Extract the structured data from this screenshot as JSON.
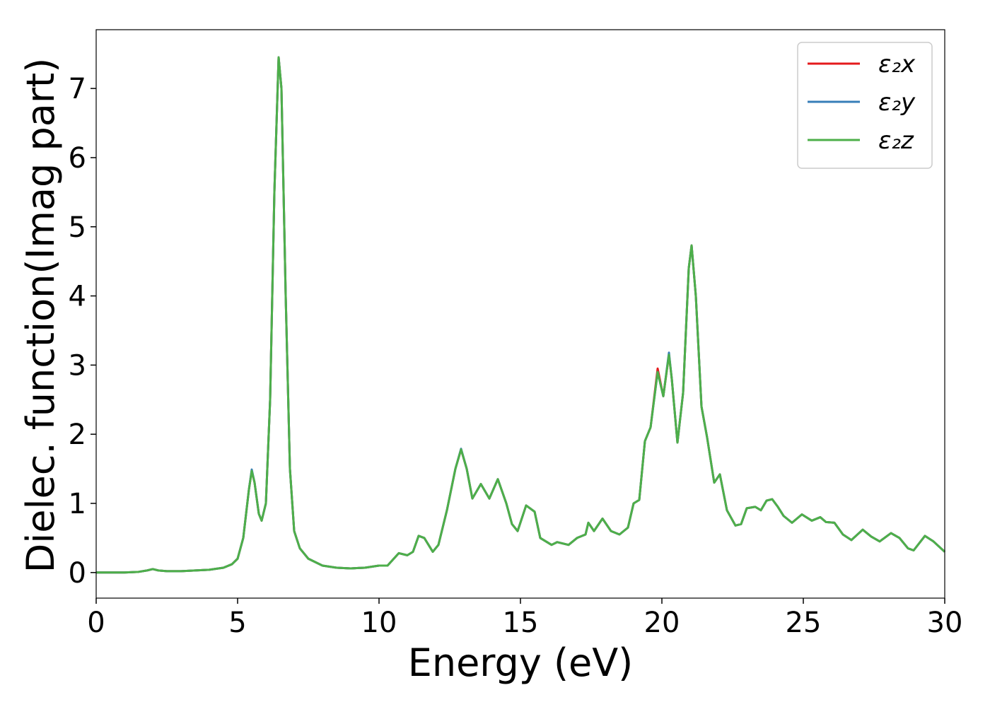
{
  "chart_data": {
    "type": "line",
    "xlabel": "Energy (eV)",
    "ylabel": "Dielec. function(Imag part)",
    "xlim": [
      0,
      30
    ],
    "ylim": [
      -0.37,
      7.85
    ],
    "xticks": [
      0,
      5,
      10,
      15,
      20,
      25,
      30
    ],
    "yticks": [
      0,
      1,
      2,
      3,
      4,
      5,
      6,
      7
    ],
    "grid": false,
    "legend": "upper right",
    "x": [
      0,
      1,
      1.5,
      1.8,
      2.0,
      2.2,
      2.5,
      3,
      3.5,
      4,
      4.5,
      4.8,
      5.0,
      5.2,
      5.4,
      5.5,
      5.6,
      5.75,
      5.85,
      6.0,
      6.15,
      6.3,
      6.45,
      6.55,
      6.7,
      6.85,
      7.0,
      7.2,
      7.5,
      8,
      8.5,
      9,
      9.5,
      10,
      10.3,
      10.7,
      11,
      11.2,
      11.4,
      11.6,
      11.9,
      12.1,
      12.4,
      12.7,
      12.9,
      13.1,
      13.3,
      13.6,
      13.9,
      14.2,
      14.5,
      14.7,
      14.9,
      15.2,
      15.5,
      15.7,
      15.9,
      16.1,
      16.3,
      16.7,
      17,
      17.3,
      17.4,
      17.6,
      17.9,
      18.2,
      18.5,
      18.8,
      19.0,
      19.2,
      19.4,
      19.6,
      19.85,
      20.05,
      20.25,
      20.35,
      20.55,
      20.75,
      20.95,
      21.05,
      21.2,
      21.4,
      21.6,
      21.85,
      22.05,
      22.3,
      22.6,
      22.8,
      23.0,
      23.3,
      23.5,
      23.7,
      23.9,
      24.1,
      24.3,
      24.6,
      24.95,
      25.3,
      25.6,
      25.8,
      26.1,
      26.4,
      26.7,
      27.1,
      27.4,
      27.7,
      28.1,
      28.4,
      28.7,
      28.9,
      29.3,
      29.6,
      30
    ],
    "series": [
      {
        "name": "ε₂x",
        "color": "#e41a1c",
        "values": [
          0,
          0,
          0.01,
          0.03,
          0.05,
          0.03,
          0.02,
          0.02,
          0.03,
          0.04,
          0.07,
          0.12,
          0.2,
          0.5,
          1.2,
          1.47,
          1.3,
          0.85,
          0.75,
          1.0,
          2.5,
          5.5,
          7.45,
          7.0,
          4.0,
          1.5,
          0.6,
          0.35,
          0.2,
          0.1,
          0.07,
          0.06,
          0.07,
          0.1,
          0.1,
          0.28,
          0.25,
          0.3,
          0.53,
          0.5,
          0.3,
          0.4,
          0.9,
          1.5,
          1.78,
          1.5,
          1.07,
          1.28,
          1.07,
          1.35,
          1.0,
          0.7,
          0.6,
          0.97,
          0.88,
          0.5,
          0.45,
          0.4,
          0.44,
          0.4,
          0.5,
          0.55,
          0.72,
          0.6,
          0.78,
          0.6,
          0.55,
          0.65,
          1.0,
          1.05,
          1.9,
          2.1,
          2.95,
          2.55,
          3.15,
          2.8,
          1.88,
          2.6,
          4.4,
          4.73,
          4.0,
          2.4,
          1.95,
          1.3,
          1.42,
          0.9,
          0.68,
          0.7,
          0.93,
          0.95,
          0.9,
          1.04,
          1.06,
          0.95,
          0.82,
          0.72,
          0.84,
          0.75,
          0.8,
          0.73,
          0.72,
          0.55,
          0.47,
          0.62,
          0.52,
          0.45,
          0.57,
          0.5,
          0.35,
          0.32,
          0.53,
          0.45,
          0.3
        ]
      },
      {
        "name": "ε₂y",
        "color": "#377eb8",
        "values": [
          0,
          0,
          0.01,
          0.03,
          0.05,
          0.03,
          0.02,
          0.02,
          0.03,
          0.04,
          0.07,
          0.12,
          0.2,
          0.5,
          1.2,
          1.49,
          1.3,
          0.85,
          0.75,
          1.0,
          2.5,
          5.5,
          7.45,
          7.0,
          4.0,
          1.5,
          0.6,
          0.35,
          0.2,
          0.1,
          0.07,
          0.06,
          0.07,
          0.1,
          0.1,
          0.28,
          0.25,
          0.3,
          0.53,
          0.5,
          0.3,
          0.4,
          0.9,
          1.5,
          1.79,
          1.5,
          1.07,
          1.28,
          1.07,
          1.35,
          1.0,
          0.7,
          0.6,
          0.97,
          0.88,
          0.5,
          0.45,
          0.4,
          0.44,
          0.4,
          0.5,
          0.55,
          0.72,
          0.6,
          0.78,
          0.6,
          0.55,
          0.65,
          1.0,
          1.05,
          1.9,
          2.1,
          2.9,
          2.55,
          3.18,
          2.8,
          1.88,
          2.6,
          4.4,
          4.73,
          4.0,
          2.4,
          1.95,
          1.3,
          1.42,
          0.9,
          0.68,
          0.7,
          0.93,
          0.95,
          0.9,
          1.04,
          1.06,
          0.95,
          0.82,
          0.72,
          0.84,
          0.75,
          0.8,
          0.73,
          0.72,
          0.55,
          0.47,
          0.62,
          0.52,
          0.45,
          0.57,
          0.5,
          0.35,
          0.32,
          0.53,
          0.45,
          0.3
        ]
      },
      {
        "name": "ε₂z",
        "color": "#4daf4a",
        "values": [
          0,
          0,
          0.01,
          0.03,
          0.05,
          0.03,
          0.02,
          0.02,
          0.03,
          0.04,
          0.07,
          0.12,
          0.2,
          0.5,
          1.2,
          1.47,
          1.3,
          0.85,
          0.75,
          1.0,
          2.5,
          5.5,
          7.45,
          7.0,
          4.0,
          1.5,
          0.6,
          0.35,
          0.2,
          0.1,
          0.07,
          0.06,
          0.07,
          0.1,
          0.1,
          0.28,
          0.25,
          0.3,
          0.53,
          0.5,
          0.3,
          0.4,
          0.9,
          1.5,
          1.78,
          1.5,
          1.07,
          1.28,
          1.07,
          1.35,
          1.0,
          0.7,
          0.6,
          0.97,
          0.88,
          0.5,
          0.45,
          0.4,
          0.44,
          0.4,
          0.5,
          0.55,
          0.72,
          0.6,
          0.78,
          0.6,
          0.55,
          0.65,
          1.0,
          1.05,
          1.9,
          2.1,
          2.9,
          2.55,
          3.15,
          2.8,
          1.88,
          2.6,
          4.4,
          4.73,
          4.0,
          2.4,
          1.95,
          1.3,
          1.42,
          0.9,
          0.68,
          0.7,
          0.93,
          0.95,
          0.9,
          1.04,
          1.06,
          0.95,
          0.82,
          0.72,
          0.84,
          0.75,
          0.8,
          0.73,
          0.72,
          0.55,
          0.47,
          0.62,
          0.52,
          0.45,
          0.57,
          0.5,
          0.35,
          0.32,
          0.53,
          0.45,
          0.3
        ]
      }
    ]
  }
}
